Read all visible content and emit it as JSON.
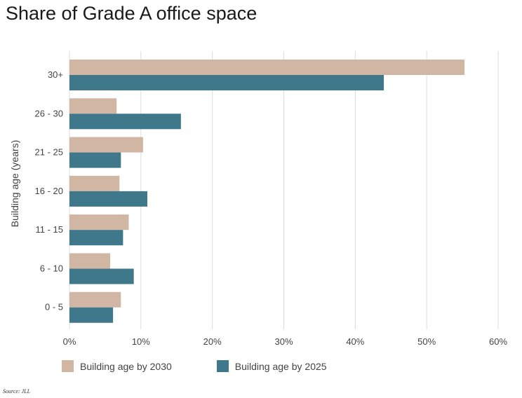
{
  "chart_data": {
    "type": "bar",
    "orientation": "horizontal",
    "title": "Share of Grade A office space",
    "ylabel": "Building age (years)",
    "xlabel": "",
    "categories": [
      "30+",
      "26 - 30",
      "21 - 25",
      "16 - 20",
      "11 - 15",
      "6 - 10",
      "0 - 5"
    ],
    "series": [
      {
        "name": "Building age by 2030",
        "color": "#d2b6a4",
        "values": [
          55.3,
          6.6,
          10.3,
          7.0,
          8.3,
          5.7,
          7.2
        ]
      },
      {
        "name": "Building age by 2025",
        "color": "#3f788a",
        "values": [
          44.0,
          15.6,
          7.2,
          10.9,
          7.5,
          9.0,
          6.1
        ]
      }
    ],
    "xlim": [
      0,
      60
    ],
    "xticks": [
      "0%",
      "10%",
      "20%",
      "30%",
      "40%",
      "50%",
      "60%"
    ],
    "grid": true,
    "legend_position": "bottom-left"
  },
  "source": "Source: JLL"
}
